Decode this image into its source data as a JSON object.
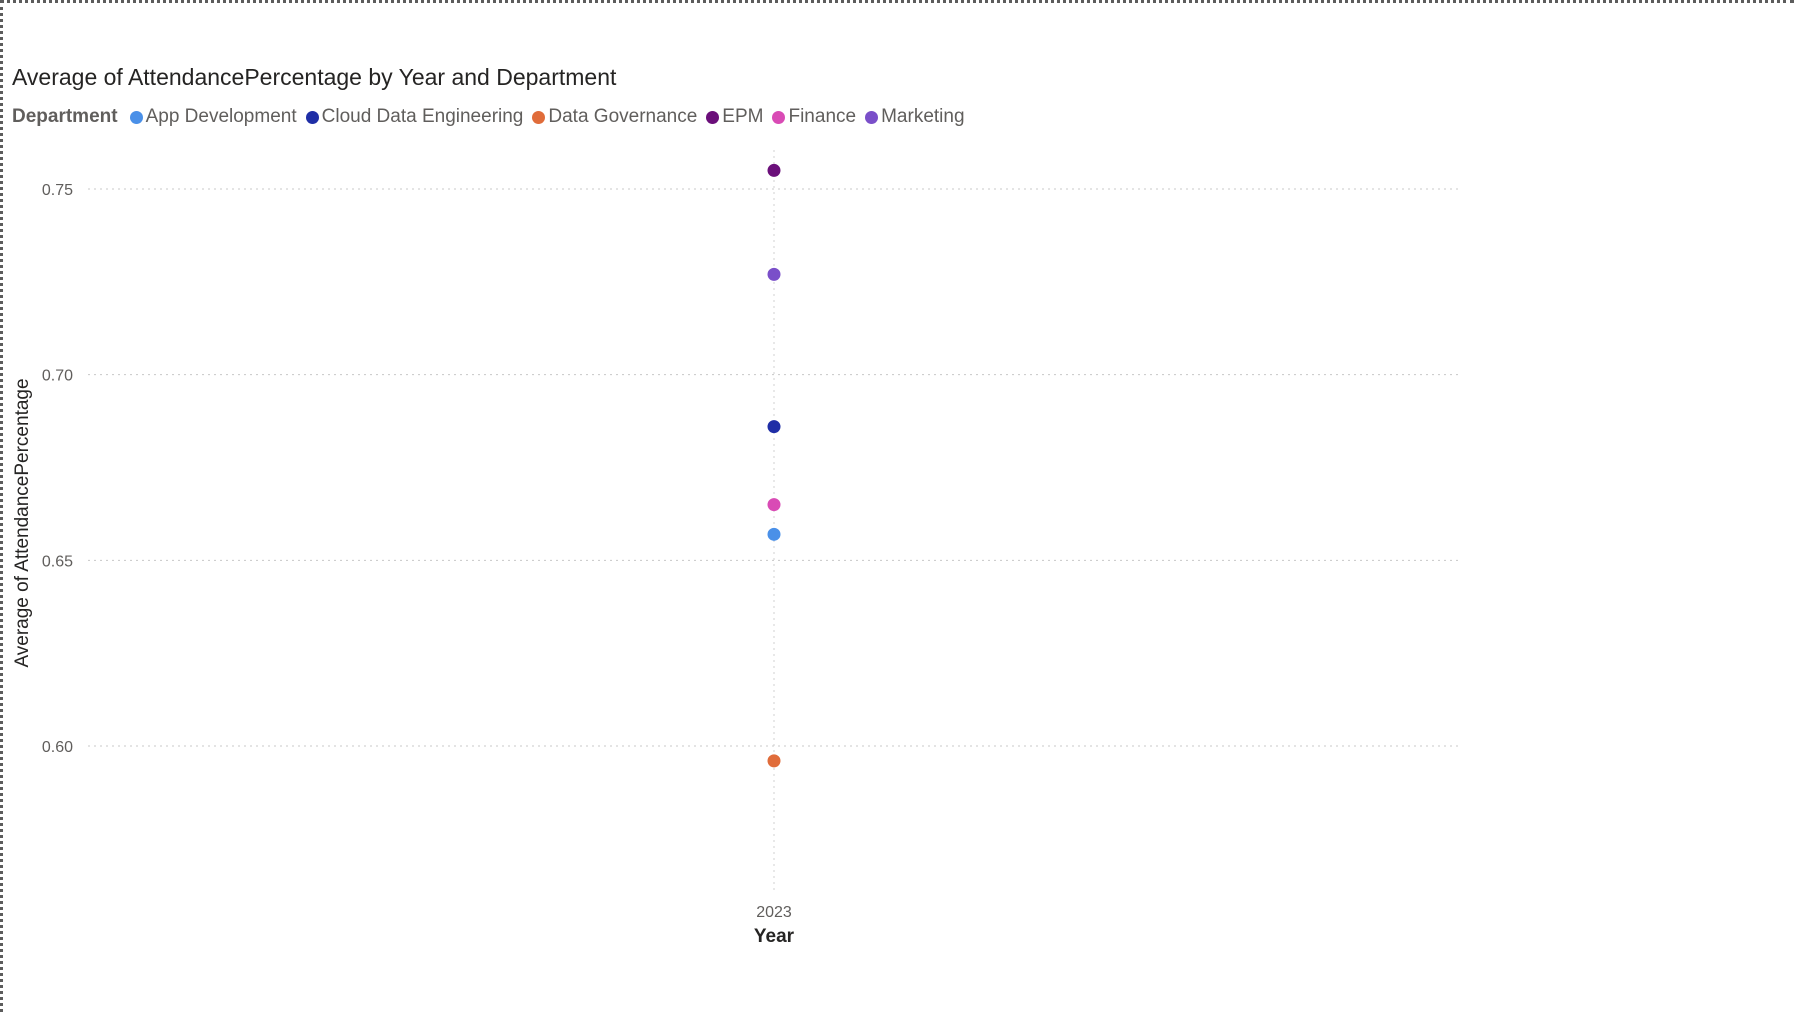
{
  "chart_data": {
    "type": "scatter",
    "title": "Average of AttendancePercentage by Year and Department",
    "xlabel": "Year",
    "ylabel": "Average of AttendancePercentage",
    "legend_title": "Department",
    "legend_position": "top-left",
    "grid": true,
    "categories": [
      "2023"
    ],
    "ylim": [
      0.55,
      0.76
    ],
    "yticks": [
      "0.60",
      "0.65",
      "0.70",
      "0.75"
    ],
    "series": [
      {
        "name": "App Development",
        "color": "#4a90e8",
        "values": [
          0.657
        ]
      },
      {
        "name": "Cloud Data Engineering",
        "color": "#1f2ea6",
        "values": [
          0.686
        ]
      },
      {
        "name": "Data Governance",
        "color": "#e06c3a",
        "values": [
          0.596
        ]
      },
      {
        "name": "EPM",
        "color": "#6b0f7a",
        "values": [
          0.755
        ]
      },
      {
        "name": "Finance",
        "color": "#d94bb5",
        "values": [
          0.665
        ]
      },
      {
        "name": "Marketing",
        "color": "#7a4fc9",
        "values": [
          0.727
        ]
      }
    ]
  }
}
